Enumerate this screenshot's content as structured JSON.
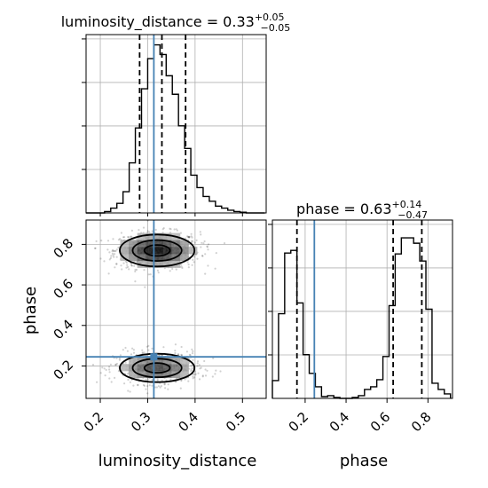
{
  "chart_data": {
    "type": "corner",
    "parameters": [
      {
        "name": "luminosity_distance",
        "label": "luminosity_distance",
        "range": [
          0.17,
          0.55
        ],
        "ticks": [
          0.2,
          0.3,
          0.4,
          0.5
        ],
        "tick_labels": [
          "0.2",
          "0.3",
          "0.4",
          "0.5"
        ],
        "injection": 0.313,
        "quantiles": [
          0.283,
          0.33,
          0.38
        ],
        "title": {
          "main": "luminosity_distance = 0.33",
          "upper": "+0.05",
          "lower": "−0.05"
        },
        "histogram": {
          "bin_edges": [
            0.17,
            0.183,
            0.196,
            0.209,
            0.222,
            0.235,
            0.248,
            0.261,
            0.274,
            0.287,
            0.3,
            0.313,
            0.326,
            0.339,
            0.352,
            0.365,
            0.378,
            0.391,
            0.404,
            0.417,
            0.43,
            0.443,
            0.456,
            0.469,
            0.482,
            0.495,
            0.508,
            0.521,
            0.534,
            0.547
          ],
          "counts": [
            0,
            0,
            0,
            2,
            7,
            14,
            31,
            73,
            124,
            181,
            225,
            245,
            231,
            200,
            173,
            127,
            94,
            55,
            37,
            24,
            17,
            10,
            7,
            4,
            2,
            1,
            0,
            0,
            0
          ]
        },
        "hist_ylim": [
          0,
          260
        ]
      },
      {
        "name": "phase",
        "label": "phase",
        "range": [
          0.04,
          0.92
        ],
        "ticks": [
          0.2,
          0.4,
          0.6,
          0.8
        ],
        "tick_labels": [
          "0.2",
          "0.4",
          "0.6",
          "0.8"
        ],
        "injection": 0.245,
        "quantiles": [
          0.16,
          0.63,
          0.77
        ],
        "title": {
          "main": "phase = 0.63",
          "upper": "+0.14",
          "lower": "−0.47"
        },
        "histogram": {
          "bin_edges": [
            0.04,
            0.07,
            0.1,
            0.13,
            0.16,
            0.19,
            0.22,
            0.25,
            0.28,
            0.31,
            0.34,
            0.37,
            0.4,
            0.43,
            0.46,
            0.49,
            0.52,
            0.55,
            0.58,
            0.61,
            0.64,
            0.67,
            0.7,
            0.73,
            0.76,
            0.79,
            0.82,
            0.85,
            0.88,
            0.91
          ],
          "counts": [
            20,
            95,
            163,
            166,
            107,
            49,
            28,
            13,
            2,
            3,
            1,
            0,
            0,
            1,
            3,
            10,
            13,
            21,
            47,
            104,
            162,
            180,
            180,
            174,
            154,
            100,
            17,
            10,
            5
          ]
        },
        "hist_ylim": [
          0,
          200
        ]
      }
    ],
    "density_2d": {
      "x_param": "luminosity_distance",
      "y_param": "phase",
      "modes": [
        {
          "center": [
            0.32,
            0.77
          ],
          "sigma": [
            0.045,
            0.045
          ],
          "weight": 0.58
        },
        {
          "center": [
            0.32,
            0.19
          ],
          "sigma": [
            0.045,
            0.04
          ],
          "weight": 0.42
        }
      ],
      "contour_levels": 3,
      "injection": [
        0.313,
        0.245
      ]
    },
    "grid": true
  }
}
